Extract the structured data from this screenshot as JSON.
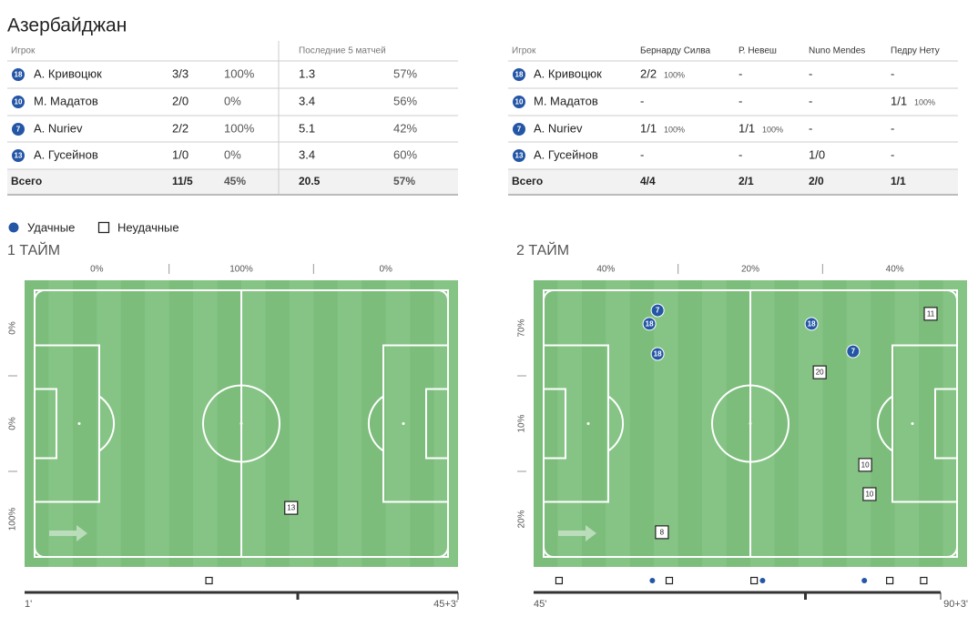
{
  "title": "Азербайджан",
  "table1": {
    "headers": [
      "Игрок",
      "Последние 5 матчей"
    ],
    "rows": [
      {
        "number": 18,
        "name": "А. Кривоцюк",
        "cells": [
          "3/3",
          "100%",
          "1.3",
          "57%"
        ]
      },
      {
        "number": 10,
        "name": "М. Мадатов",
        "cells": [
          "2/0",
          "0%",
          "3.4",
          "56%"
        ]
      },
      {
        "number": 7,
        "name": "A. Nuriev",
        "cells": [
          "2/2",
          "100%",
          "5.1",
          "42%"
        ]
      },
      {
        "number": 13,
        "name": "А. Гусейнов",
        "cells": [
          "1/0",
          "0%",
          "3.4",
          "60%"
        ]
      }
    ],
    "total": {
      "name": "Всего",
      "cells": [
        "11/5",
        "45%",
        "20.5",
        "57%"
      ]
    }
  },
  "table2": {
    "headers": [
      "Игрок",
      "Бернарду Силва",
      "Р. Невеш",
      "Nuno Mendes",
      "Педру Нету"
    ],
    "rows": [
      {
        "number": 18,
        "name": "А. Кривоцюк",
        "cells": [
          {
            "text": "2/2",
            "pct": "100%"
          },
          {
            "text": "-"
          },
          {
            "text": "-"
          },
          {
            "text": "-"
          }
        ]
      },
      {
        "number": 10,
        "name": "М. Мадатов",
        "cells": [
          {
            "text": "-"
          },
          {
            "text": "-"
          },
          {
            "text": "-"
          },
          {
            "text": "1/1",
            "pct": "100%"
          }
        ]
      },
      {
        "number": 7,
        "name": "A. Nuriev",
        "cells": [
          {
            "text": "1/1",
            "pct": "100%"
          },
          {
            "text": "1/1",
            "pct": "100%"
          },
          {
            "text": "-"
          },
          {
            "text": "-"
          }
        ]
      },
      {
        "number": 13,
        "name": "А. Гусейнов",
        "cells": [
          {
            "text": "-"
          },
          {
            "text": "-"
          },
          {
            "text": "1/0"
          },
          {
            "text": "-"
          }
        ]
      }
    ],
    "total": {
      "name": "Всего",
      "cells": [
        {
          "text": "4/4"
        },
        {
          "text": "2/1"
        },
        {
          "text": "2/0"
        },
        {
          "text": "1/1"
        }
      ]
    }
  },
  "legend": {
    "success": "Удачные",
    "fail": "Неудачные"
  },
  "halves": [
    {
      "title": "1 ТАЙМ",
      "top_labels": [
        "0%",
        "100%",
        "0%"
      ],
      "side_labels": [
        "0%",
        "0%",
        "100%"
      ],
      "markers": [
        {
          "number": 13,
          "x": 61.5,
          "y": 79.4,
          "success": false
        }
      ],
      "timeline": {
        "start_label": "1'",
        "end_label": "45+3'",
        "range": [
          1,
          48
        ],
        "events": [
          {
            "minute": 21,
            "success": false
          }
        ]
      }
    },
    {
      "title": "2 ТАЙМ",
      "top_labels": [
        "40%",
        "20%",
        "40%"
      ],
      "side_labels": [
        "70%",
        "10%",
        "20%"
      ],
      "markers": [
        {
          "number": 7,
          "x": 28.6,
          "y": 10.5,
          "success": true
        },
        {
          "number": 18,
          "x": 26.7,
          "y": 15.2,
          "success": true
        },
        {
          "number": 18,
          "x": 28.6,
          "y": 25.7,
          "success": true
        },
        {
          "number": 18,
          "x": 64.1,
          "y": 15.2,
          "success": true
        },
        {
          "number": 7,
          "x": 73.7,
          "y": 24.8,
          "success": true
        },
        {
          "number": 11,
          "x": 91.6,
          "y": 11.7,
          "success": false
        },
        {
          "number": 20,
          "x": 66.0,
          "y": 32.1,
          "success": false
        },
        {
          "number": 10,
          "x": 76.5,
          "y": 64.4,
          "success": false
        },
        {
          "number": 10,
          "x": 77.5,
          "y": 74.6,
          "success": false
        },
        {
          "number": 8,
          "x": 29.6,
          "y": 87.9,
          "success": false
        }
      ],
      "timeline": {
        "start_label": "45'",
        "end_label": "90+3'",
        "range": [
          45,
          93
        ],
        "events": [
          {
            "minute": 48,
            "success": false
          },
          {
            "minute": 59,
            "success": true
          },
          {
            "minute": 61,
            "success": false
          },
          {
            "minute": 71,
            "success": false
          },
          {
            "minute": 72,
            "success": true
          },
          {
            "minute": 84,
            "success": true
          },
          {
            "minute": 87,
            "success": false
          },
          {
            "minute": 91,
            "success": false
          }
        ]
      }
    }
  ]
}
